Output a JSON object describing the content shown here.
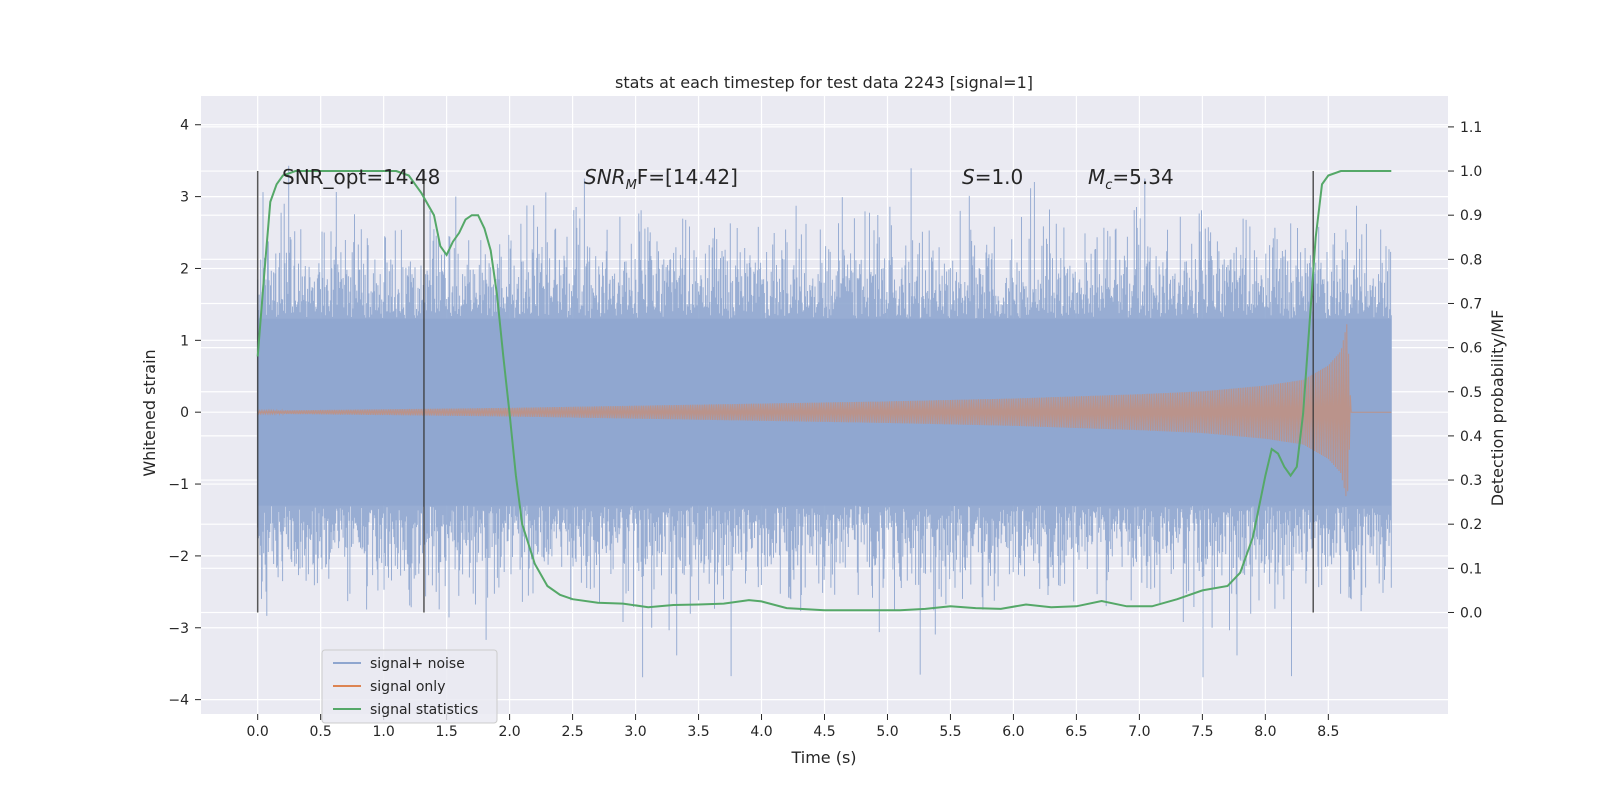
{
  "chart_data": {
    "type": "line",
    "title": "stats at each timestep for test data 2243 [signal=1]",
    "xlabel": "Time (s)",
    "ylabel": "Whitened strain",
    "ylabel_right": "Detection probability/MF",
    "xlim": [
      -0.45,
      9.45
    ],
    "ylim": [
      -4.2,
      4.4
    ],
    "ylim_right": [
      -0.23,
      1.17
    ],
    "x_ticks": [
      "0.0",
      "0.5",
      "1.0",
      "1.5",
      "2.0",
      "2.5",
      "3.0",
      "3.5",
      "4.0",
      "4.5",
      "5.0",
      "5.5",
      "6.0",
      "6.5",
      "7.0",
      "7.5",
      "8.0",
      "8.5"
    ],
    "y_ticks": [
      "4",
      "3",
      "2",
      "1",
      "0",
      "−1",
      "−2",
      "−3",
      "−4"
    ],
    "y_ticks_right": [
      "1.1",
      "1.0",
      "0.9",
      "0.8",
      "0.7",
      "0.6",
      "0.5",
      "0.4",
      "0.3",
      "0.2",
      "0.1",
      "0.0"
    ],
    "grid": true,
    "legend_position": "bottom-left",
    "annotations": {
      "snr_opt": "SNR_opt=14.48",
      "snr_mf_italic": "SNR",
      "snr_mf_sub": "M",
      "snr_mf_rest": "F=[14.42]",
      "s_italic": "S",
      "s_rest": "=1.0",
      "mc_italic": "M",
      "mc_sub": "c",
      "mc_rest": "=5.34"
    },
    "vertical_lines": [
      0.0,
      1.32,
      8.38
    ],
    "series": [
      {
        "name": "signal+ noise",
        "color": "#8fa6cf",
        "description_range": "noise band approximately within [-2.5, 2.5] with spikes to about ±3.8",
        "t_range": [
          0.0,
          9.0
        ]
      },
      {
        "name": "signal only",
        "color": "#dd8452",
        "envelope": {
          "t": [
            0.0,
            1.0,
            2.0,
            3.0,
            4.0,
            5.0,
            6.0,
            7.0,
            7.5,
            8.0,
            8.3,
            8.5,
            8.6,
            8.65,
            8.68,
            9.0
          ],
          "amp": [
            0.02,
            0.04,
            0.06,
            0.09,
            0.12,
            0.15,
            0.19,
            0.25,
            0.29,
            0.37,
            0.45,
            0.65,
            0.85,
            1.25,
            0.0,
            0.0
          ]
        }
      },
      {
        "name": "signal statistics",
        "color": "#55a868",
        "x": [
          0.0,
          0.05,
          0.1,
          0.15,
          0.2,
          0.3,
          0.5,
          0.7,
          0.9,
          1.0,
          1.1,
          1.2,
          1.25,
          1.3,
          1.4,
          1.45,
          1.5,
          1.55,
          1.6,
          1.65,
          1.7,
          1.75,
          1.8,
          1.85,
          1.9,
          1.95,
          2.0,
          2.05,
          2.1,
          2.2,
          2.3,
          2.4,
          2.5,
          2.7,
          2.9,
          3.1,
          3.3,
          3.5,
          3.7,
          3.9,
          4.0,
          4.2,
          4.5,
          4.8,
          5.1,
          5.3,
          5.5,
          5.7,
          5.9,
          6.1,
          6.3,
          6.5,
          6.7,
          6.9,
          7.1,
          7.3,
          7.5,
          7.7,
          7.8,
          7.9,
          8.0,
          8.05,
          8.1,
          8.15,
          8.2,
          8.25,
          8.3,
          8.35,
          8.4,
          8.45,
          8.5,
          8.6,
          8.8,
          9.0
        ],
        "y": [
          0.58,
          0.76,
          0.93,
          0.97,
          0.99,
          1.0,
          1.0,
          1.0,
          1.0,
          1.0,
          1.0,
          0.99,
          0.97,
          0.95,
          0.9,
          0.83,
          0.81,
          0.84,
          0.86,
          0.89,
          0.9,
          0.9,
          0.87,
          0.82,
          0.72,
          0.58,
          0.45,
          0.31,
          0.2,
          0.11,
          0.06,
          0.04,
          0.03,
          0.022,
          0.02,
          0.012,
          0.017,
          0.018,
          0.02,
          0.028,
          0.025,
          0.01,
          0.005,
          0.005,
          0.005,
          0.008,
          0.014,
          0.01,
          0.008,
          0.018,
          0.012,
          0.014,
          0.026,
          0.014,
          0.014,
          0.03,
          0.05,
          0.06,
          0.09,
          0.17,
          0.31,
          0.37,
          0.36,
          0.33,
          0.31,
          0.33,
          0.45,
          0.65,
          0.85,
          0.97,
          0.99,
          1.0,
          1.0,
          1.0
        ]
      }
    ]
  }
}
